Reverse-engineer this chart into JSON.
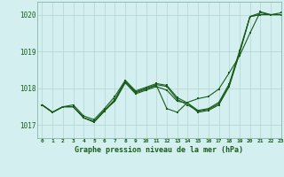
{
  "title": "Graphe pression niveau de la mer (hPa)",
  "bg_color": "#d4efef",
  "grid_color": "#b8d8d8",
  "line_color": "#1a5c1a",
  "xlim": [
    -0.5,
    23
  ],
  "ylim": [
    1016.65,
    1020.35
  ],
  "yticks": [
    1017,
    1018,
    1019,
    1020
  ],
  "xtick_labels": [
    "0",
    "1",
    "2",
    "3",
    "4",
    "5",
    "6",
    "7",
    "8",
    "9",
    "10",
    "11",
    "12",
    "13",
    "14",
    "15",
    "16",
    "17",
    "18",
    "19",
    "20",
    "21",
    "22",
    "23"
  ],
  "series": [
    [
      1017.55,
      1017.35,
      1017.5,
      1017.5,
      1017.2,
      1017.1,
      1017.4,
      1017.65,
      1018.15,
      1017.85,
      1017.95,
      1018.05,
      1017.95,
      1017.65,
      1017.6,
      1017.35,
      1017.4,
      1017.55,
      1018.05,
      1018.95,
      1019.95,
      1020.05,
      1020.0,
      1020.05
    ],
    [
      1017.55,
      1017.35,
      1017.5,
      1017.5,
      1017.2,
      1017.1,
      1017.4,
      1017.7,
      1018.2,
      1017.9,
      1018.0,
      1018.1,
      1018.05,
      1017.7,
      1017.55,
      1017.38,
      1017.43,
      1017.58,
      1018.08,
      1018.98,
      1019.95,
      1020.0,
      1020.0,
      1020.0
    ],
    [
      1017.55,
      1017.35,
      1017.5,
      1017.55,
      1017.25,
      1017.15,
      1017.45,
      1017.78,
      1018.22,
      1017.93,
      1018.03,
      1018.13,
      1018.08,
      1017.75,
      1017.6,
      1017.4,
      1017.45,
      1017.62,
      1018.12,
      1019.02,
      1019.95,
      1020.0,
      1020.0,
      1020.0
    ],
    [
      1017.55,
      1017.35,
      1017.5,
      1017.5,
      1017.2,
      1017.08,
      1017.38,
      1017.68,
      1018.18,
      1017.88,
      1017.98,
      1018.08,
      1017.45,
      1017.35,
      1017.62,
      1017.72,
      1017.78,
      1017.98,
      1018.42,
      1018.88,
      1019.5,
      1020.08,
      1020.0,
      1020.0
    ]
  ]
}
